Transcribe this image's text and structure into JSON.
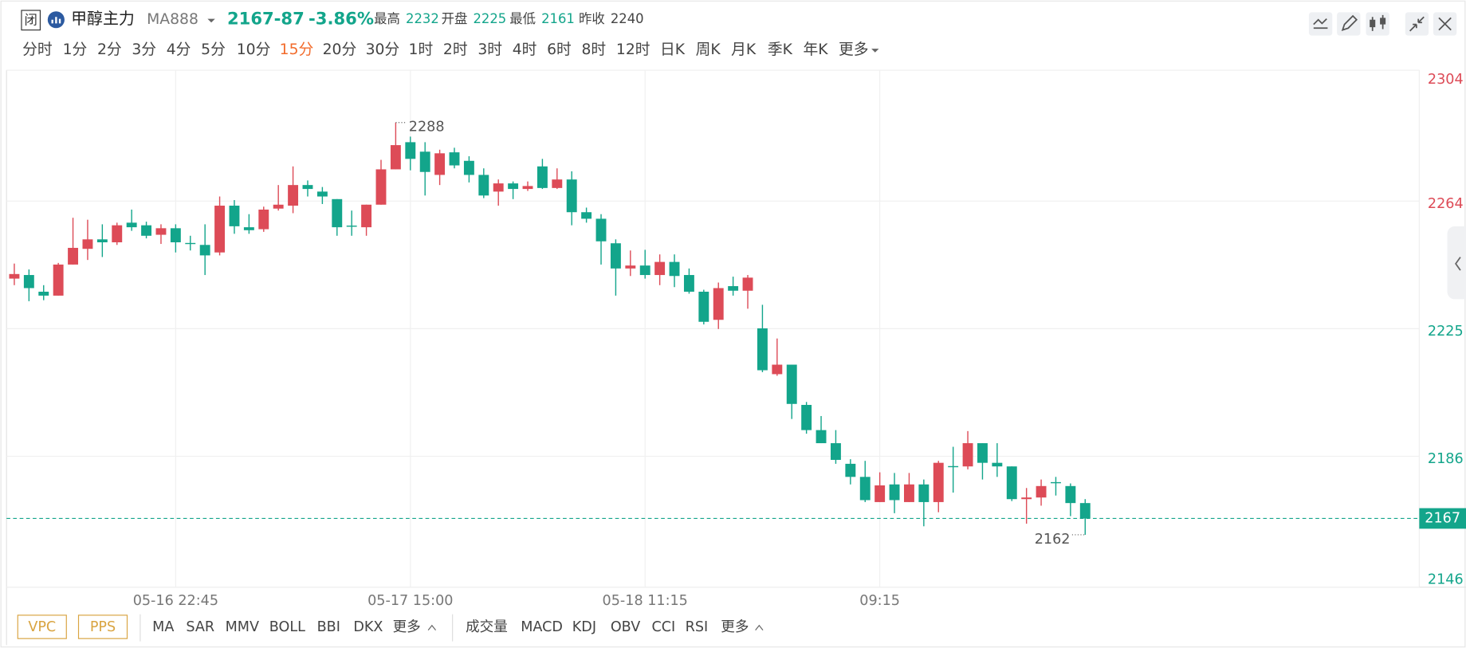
{
  "header": {
    "status": "闭",
    "name": "甲醇主力",
    "code": "MA888",
    "price": "2167",
    "change": "-87",
    "change_pct": "-3.86%",
    "stats": [
      {
        "label": "最高",
        "value": 2232
      },
      {
        "label": "开盘",
        "value": 2225
      },
      {
        "label": "最低",
        "value": 2161
      },
      {
        "label": "昨收",
        "value": 2240
      }
    ],
    "prev_close": 2240
  },
  "periods": [
    "分时",
    "1分",
    "2分",
    "3分",
    "4分",
    "5分",
    "10分",
    "15分",
    "20分",
    "30分",
    "1时",
    "2时",
    "3时",
    "4时",
    "6时",
    "8时",
    "12时",
    "日K",
    "周K",
    "月K",
    "季K",
    "年K",
    "更多"
  ],
  "active_period": 7,
  "toolbar": {
    "buttons": [
      "VPC",
      "PPS"
    ],
    "main_indicators": [
      "MA",
      "SAR",
      "MMV",
      "BOLL",
      "BBI",
      "DKX",
      "更多"
    ],
    "sub_indicators": [
      "成交量",
      "MACD",
      "KDJ",
      "OBV",
      "CCI",
      "RSI",
      "更多"
    ]
  },
  "chart_data": {
    "type": "candlestick",
    "categories": [
      null,
      null,
      null,
      null,
      null,
      null,
      null,
      null,
      null,
      null,
      null,
      "05-16 22:45",
      null,
      null,
      null,
      null,
      null,
      null,
      null,
      null,
      null,
      null,
      null,
      null,
      null,
      null,
      null,
      "05-17 15:00",
      null,
      null,
      null,
      null,
      null,
      null,
      null,
      null,
      null,
      null,
      null,
      null,
      null,
      null,
      null,
      "05-18 11:15",
      null,
      null,
      null,
      null,
      null,
      null,
      null,
      null,
      null,
      null,
      null,
      null,
      null,
      null,
      null,
      "09:15",
      null,
      null,
      null,
      null,
      null,
      null,
      null,
      null,
      null,
      null,
      null,
      null,
      null,
      null
    ],
    "open": [
      2240.3,
      2241.4,
      2236.3,
      2235.1,
      2244.6,
      2249.4,
      2252.3,
      2251.4,
      2257.4,
      2256.6,
      2253.7,
      2255.7,
      2251.2,
      2250.6,
      2248.3,
      2262.6,
      2256,
      2255.4,
      2261.7,
      2262.6,
      2268.9,
      2266.9,
      2264.6,
      2256.5,
      2256,
      2262.9,
      2273.7,
      2282,
      2279.1,
      2272,
      2278.9,
      2276.3,
      2272,
      2266.9,
      2269.4,
      2267.7,
      2274.6,
      2268,
      2270.6,
      2260.6,
      2258.6,
      2251.1,
      2243.4,
      2244.3,
      2241.4,
      2245.4,
      2241.4,
      2236.3,
      2227.7,
      2238,
      2236.6,
      2225.1,
      2211.1,
      2214,
      2201.7,
      2194,
      2190,
      2183.7,
      2179.7,
      2172,
      2177.4,
      2172,
      2177.4,
      2172,
      2183,
      2182.9,
      2190,
      2184,
      2182.9,
      2172.9,
      2173.4,
      2178.1,
      2176.9,
      2171.7
    ],
    "high": [
      2244.9,
      2243.1,
      2238.3,
      2245.1,
      2258.9,
      2258.3,
      2256.9,
      2257.4,
      2261.4,
      2257.7,
      2256.9,
      2256.9,
      2253.4,
      2256.9,
      2265.4,
      2264.3,
      2260,
      2262.3,
      2268.9,
      2274.6,
      2270.3,
      2268.3,
      2264.6,
      2261.1,
      2262.9,
      2276.6,
      2288,
      2283.7,
      2282,
      2279.7,
      2280.3,
      2277.7,
      2274,
      2270.6,
      2270,
      2270,
      2276.9,
      2274,
      2273.1,
      2262,
      2260,
      2252.3,
      2248.9,
      2249.1,
      2247.7,
      2247.7,
      2243.4,
      2236.9,
      2239.1,
      2240.9,
      2241.4,
      2232.3,
      2222,
      2214,
      2202.6,
      2198.3,
      2194,
      2185.1,
      2184.6,
      2181.1,
      2180.9,
      2180.9,
      2178.9,
      2184.6,
      2188.9,
      2193.7,
      2190,
      2190,
      2182.9,
      2176.3,
      2178.9,
      2179.7,
      2177.7,
      2172.9
    ],
    "low": [
      2238.3,
      2233.4,
      2233.7,
      2235.1,
      2244.6,
      2246,
      2246.9,
      2250.6,
      2254.9,
      2252.6,
      2250.9,
      2248.3,
      2248.9,
      2241.4,
      2247.4,
      2254,
      2254,
      2254.6,
      2261.1,
      2260.3,
      2265.4,
      2263.1,
      2253.4,
      2253.4,
      2253.4,
      2262.9,
      2273.7,
      2273.4,
      2265.7,
      2268.9,
      2274,
      2269.7,
      2264.9,
      2262.6,
      2264.6,
      2267.1,
      2267.7,
      2267.7,
      2256.6,
      2257.4,
      2244.6,
      2235.1,
      2241.1,
      2240.3,
      2238.3,
      2237.7,
      2235.7,
      2226.3,
      2224.9,
      2235.1,
      2231.1,
      2211.7,
      2210.6,
      2197.4,
      2192.9,
      2190,
      2183.7,
      2177.4,
      2172,
      2172,
      2168.6,
      2172,
      2164.6,
      2168.9,
      2174.9,
      2182,
      2178.9,
      2179.7,
      2172.3,
      2165.4,
      2170.9,
      2174,
      2167.7,
      2162
    ],
    "close": [
      2241.7,
      2237.4,
      2235.1,
      2244.6,
      2249.7,
      2252.3,
      2251.4,
      2256.6,
      2256,
      2253.4,
      2255.7,
      2251.4,
      2251,
      2247.4,
      2262.6,
      2256.3,
      2255.1,
      2261.4,
      2262.9,
      2268.9,
      2267.7,
      2265.4,
      2256,
      2256.3,
      2262.9,
      2273.7,
      2281.1,
      2276.9,
      2272.9,
      2278.6,
      2274.9,
      2272,
      2265.7,
      2269.4,
      2267.7,
      2268.6,
      2268,
      2270.6,
      2260.6,
      2258.6,
      2251.7,
      2243.4,
      2244.3,
      2241.4,
      2245.4,
      2241.1,
      2236.3,
      2227.1,
      2237.4,
      2236.6,
      2240.6,
      2212.3,
      2214,
      2202,
      2194,
      2190,
      2184.9,
      2179.7,
      2172.6,
      2177.1,
      2172.6,
      2177.4,
      2172,
      2184,
      2182.8,
      2190,
      2184,
      2182.9,
      2172.9,
      2173.4,
      2176.9,
      2177.9,
      2171.7,
      2167
    ],
    "up_color": "#dd4b57",
    "down_color": "#13a58b",
    "ylim": [
      2146,
      2304
    ],
    "yticks": [
      2146,
      2186,
      2225,
      2264,
      2304
    ],
    "grid": true,
    "high_mark": 2288,
    "low_mark": 2162,
    "last_price": 2167
  }
}
